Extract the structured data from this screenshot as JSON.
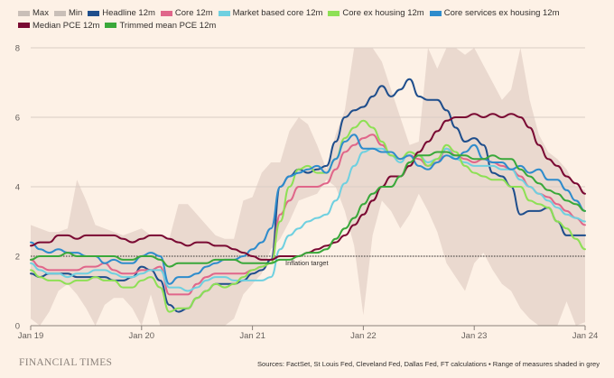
{
  "chart_data": {
    "type": "line",
    "title": "",
    "xlabel": "",
    "ylabel": "",
    "ylim": [
      0,
      8
    ],
    "yticks": [
      "0",
      "2",
      "4",
      "6",
      "8"
    ],
    "xticks": [
      "Jan 19",
      "Jan 20",
      "Jan 21",
      "Jan 22",
      "Jan 23",
      "Jan 24"
    ],
    "x_start": "2019-01",
    "x_end": "2024-01",
    "grid": true,
    "legend_position": "top",
    "reference_line": {
      "value": 2,
      "label": "Inflation target",
      "style": "dotted"
    },
    "legend": [
      {
        "name": "Max",
        "color": "#c9bfb8"
      },
      {
        "name": "Min",
        "color": "#c9bfb8"
      },
      {
        "name": "Headline 12m",
        "color": "#1f4e8c"
      },
      {
        "name": "Core 12m",
        "color": "#e0668a"
      },
      {
        "name": "Market based core 12m",
        "color": "#6fd0e0"
      },
      {
        "name": "Core ex housing 12m",
        "color": "#8ee055"
      },
      {
        "name": "Core services ex housing 12m",
        "color": "#2f8ccc"
      },
      {
        "name": "Median PCE 12m",
        "color": "#7a0a33"
      },
      {
        "name": "Trimmed mean PCE 12m",
        "color": "#3aa83a"
      }
    ],
    "band": {
      "name": "Range of measures",
      "color": "#ead9cf",
      "max": [
        2.9,
        2.8,
        2.7,
        2.7,
        2.8,
        4.2,
        3.6,
        2.9,
        2.8,
        2.7,
        2.6,
        2.7,
        2.8,
        2.6,
        2.6,
        2.5,
        3.5,
        3.5,
        3.2,
        2.9,
        2.6,
        2.5,
        2.5,
        3.6,
        3.7,
        4.4,
        4.7,
        4.7,
        5.6,
        6.0,
        5.8,
        5.2,
        4.5,
        5.5,
        6.2,
        8.0,
        8.0,
        8.0,
        7.6,
        6.8,
        6.0,
        5.2,
        5.3,
        8.0,
        7.4,
        8.0,
        8.0,
        7.8,
        8.0,
        7.5,
        7.0,
        6.5,
        6.8,
        8.0,
        6.5,
        5.5,
        5.0,
        4.8,
        4.5,
        4.0,
        3.9
      ],
      "min": [
        0.2,
        0.0,
        0.4,
        1.0,
        1.2,
        0.9,
        0.5,
        0.0,
        0.6,
        0.8,
        0.8,
        0.5,
        0.0,
        0.9,
        0.0,
        0.0,
        0.0,
        0.0,
        0.0,
        0.0,
        0.0,
        0.0,
        0.2,
        0.9,
        1.2,
        1.5,
        2.2,
        2.5,
        3.0,
        3.6,
        3.7,
        3.8,
        4.2,
        4.0,
        3.3,
        2.3,
        0.3,
        2.6,
        3.6,
        3.3,
        2.8,
        3.2,
        3.8,
        3.3,
        2.7,
        1.8,
        1.4,
        1.0,
        1.8,
        2.1,
        1.6,
        1.2,
        1.0,
        0.5,
        0.2,
        0.0,
        0.0,
        0.0,
        0.7,
        0.0,
        0.1
      ]
    },
    "series": [
      {
        "name": "Headline 12m",
        "color": "#1f4e8c",
        "values": [
          1.5,
          1.4,
          1.5,
          1.5,
          1.5,
          1.4,
          1.4,
          1.4,
          1.4,
          1.3,
          1.3,
          1.4,
          1.7,
          1.6,
          1.3,
          0.6,
          0.4,
          0.5,
          0.8,
          1.0,
          1.2,
          1.2,
          1.2,
          1.3,
          1.5,
          1.6,
          1.9,
          4.0,
          4.3,
          4.5,
          4.4,
          4.5,
          4.6,
          5.3,
          6.0,
          6.2,
          6.3,
          6.6,
          6.9,
          6.6,
          6.8,
          7.1,
          6.6,
          6.5,
          6.5,
          6.2,
          5.7,
          5.3,
          5.4,
          5.2,
          4.4,
          4.3,
          4.0,
          3.2,
          3.3,
          3.3,
          3.4,
          3.0,
          2.6,
          2.6,
          2.6
        ]
      },
      {
        "name": "Core 12m",
        "color": "#e0668a",
        "values": [
          1.9,
          1.7,
          1.6,
          1.6,
          1.6,
          1.6,
          1.7,
          1.7,
          1.8,
          1.6,
          1.5,
          1.5,
          1.6,
          1.6,
          1.7,
          0.9,
          0.9,
          0.9,
          1.2,
          1.4,
          1.5,
          1.5,
          1.5,
          1.5,
          1.6,
          1.7,
          1.8,
          3.2,
          3.6,
          4.0,
          4.0,
          4.0,
          4.1,
          4.5,
          5.0,
          5.2,
          5.4,
          5.5,
          5.2,
          4.9,
          4.8,
          4.9,
          4.8,
          4.6,
          4.7,
          5.1,
          4.9,
          4.8,
          4.7,
          4.8,
          4.7,
          4.6,
          4.5,
          4.3,
          4.0,
          3.8,
          3.7,
          3.5,
          3.3,
          3.1,
          2.9
        ]
      },
      {
        "name": "Market based core 12m",
        "color": "#6fd0e0",
        "values": [
          1.8,
          1.6,
          1.5,
          1.5,
          1.4,
          1.5,
          1.5,
          1.6,
          1.6,
          1.5,
          1.4,
          1.4,
          1.5,
          1.6,
          1.6,
          1.1,
          1.1,
          1.0,
          1.1,
          1.3,
          1.4,
          1.4,
          1.3,
          1.3,
          1.3,
          1.3,
          1.4,
          2.2,
          2.6,
          2.8,
          3.0,
          3.1,
          3.2,
          3.6,
          4.1,
          4.6,
          5.0,
          5.1,
          5.1,
          4.9,
          4.7,
          5.0,
          4.9,
          4.7,
          4.8,
          5.1,
          4.8,
          4.7,
          4.6,
          4.6,
          4.6,
          4.5,
          4.5,
          4.2,
          4.0,
          3.8,
          3.6,
          3.4,
          3.2,
          3.1,
          3.0
        ]
      },
      {
        "name": "Core ex housing 12m",
        "color": "#8ee055",
        "values": [
          1.6,
          1.4,
          1.3,
          1.3,
          1.2,
          1.3,
          1.3,
          1.4,
          1.3,
          1.3,
          1.1,
          1.1,
          1.3,
          1.4,
          1.1,
          0.4,
          0.5,
          0.5,
          0.8,
          1.0,
          1.2,
          1.1,
          1.2,
          1.4,
          1.6,
          1.7,
          1.8,
          3.0,
          4.0,
          4.5,
          4.6,
          4.4,
          4.4,
          4.8,
          5.4,
          5.7,
          5.9,
          5.7,
          5.3,
          4.9,
          4.8,
          5.0,
          4.9,
          4.6,
          4.8,
          5.2,
          5.0,
          4.6,
          4.4,
          4.3,
          4.2,
          4.2,
          4.0,
          4.0,
          3.6,
          3.5,
          3.4,
          3.0,
          2.8,
          2.5,
          2.2
        ]
      },
      {
        "name": "Core services ex housing 12m",
        "color": "#2f8ccc",
        "values": [
          2.4,
          2.2,
          2.1,
          2.2,
          2.1,
          2.1,
          2.0,
          2.0,
          1.8,
          1.9,
          1.8,
          1.8,
          2.0,
          2.1,
          2.0,
          1.2,
          1.4,
          1.4,
          1.5,
          1.7,
          1.8,
          1.9,
          1.9,
          2.0,
          2.2,
          2.4,
          2.8,
          4.0,
          4.3,
          4.4,
          4.5,
          4.6,
          4.4,
          4.8,
          5.3,
          5.5,
          5.1,
          5.1,
          5.0,
          5.0,
          4.8,
          4.9,
          4.6,
          4.5,
          4.7,
          4.9,
          4.8,
          5.0,
          5.2,
          4.8,
          4.7,
          4.7,
          4.5,
          4.6,
          4.4,
          4.5,
          4.2,
          4.2,
          3.9,
          3.6,
          3.3
        ]
      },
      {
        "name": "Median PCE 12m",
        "color": "#7a0a33",
        "values": [
          2.3,
          2.4,
          2.4,
          2.6,
          2.6,
          2.5,
          2.6,
          2.6,
          2.6,
          2.6,
          2.5,
          2.4,
          2.5,
          2.6,
          2.6,
          2.5,
          2.4,
          2.3,
          2.4,
          2.4,
          2.3,
          2.3,
          2.2,
          2.1,
          2.0,
          1.9,
          1.9,
          2.0,
          2.0,
          2.0,
          2.1,
          2.2,
          2.3,
          2.4,
          2.6,
          2.9,
          3.2,
          3.6,
          4.0,
          4.3,
          4.3,
          4.6,
          5.0,
          5.3,
          5.6,
          5.9,
          6.0,
          6.0,
          6.1,
          6.0,
          6.1,
          6.0,
          6.1,
          6.0,
          5.7,
          5.2,
          4.8,
          4.6,
          4.3,
          4.1,
          3.8
        ]
      },
      {
        "name": "Trimmed mean PCE 12m",
        "color": "#3aa83a",
        "values": [
          1.9,
          2.0,
          2.0,
          2.0,
          2.1,
          2.0,
          2.0,
          2.0,
          2.0,
          2.0,
          1.9,
          1.9,
          2.0,
          2.0,
          1.9,
          1.7,
          1.8,
          1.8,
          1.8,
          1.8,
          1.9,
          1.9,
          1.9,
          1.8,
          1.8,
          1.8,
          1.8,
          1.9,
          1.9,
          2.0,
          2.1,
          2.1,
          2.2,
          2.5,
          2.8,
          3.1,
          3.5,
          3.8,
          4.0,
          4.0,
          4.3,
          4.7,
          4.9,
          4.9,
          5.0,
          5.0,
          4.9,
          4.9,
          4.8,
          4.8,
          4.9,
          4.8,
          4.8,
          4.5,
          4.3,
          4.1,
          3.9,
          3.8,
          3.6,
          3.5,
          3.3
        ]
      }
    ]
  },
  "footer": {
    "brand": "FINANCIAL TIMES",
    "source": "Sources: FactSet, St Louis Fed, Cleveland Fed, Dallas Fed, FT calculations • Range of measures shaded in grey"
  }
}
